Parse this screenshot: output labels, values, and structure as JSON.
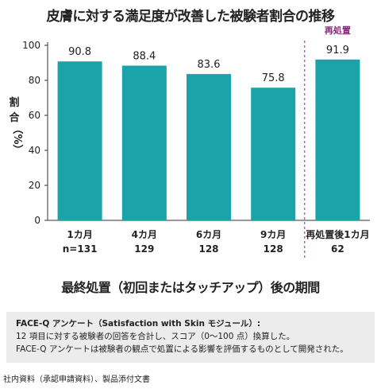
{
  "title": "皮膚に対する満足度が改善した被験者割合の推移",
  "chart_data": {
    "type": "bar",
    "title": "皮膚に対する満足度が改善した被験者割合の推移",
    "ylabel": [
      "割",
      "合",
      "（%）"
    ],
    "ylim": [
      0,
      100
    ],
    "yticks": [
      0,
      20,
      40,
      60,
      80,
      100
    ],
    "categories": [
      {
        "label": "1カ月",
        "n": "n=131"
      },
      {
        "label": "4カ月",
        "n": "129"
      },
      {
        "label": "6カ月",
        "n": "128"
      },
      {
        "label": "9カ月",
        "n": "128"
      },
      {
        "label": "再処置後1カ月",
        "n": "62"
      }
    ],
    "values": [
      90.8,
      88.4,
      83.6,
      75.8,
      91.9
    ],
    "value_labels": [
      "90.8",
      "88.4",
      "83.6",
      "75.8",
      "91.9"
    ],
    "bar_color": "#1aa3a8",
    "divider_label": "再処置",
    "divider_color": "#8a2a7a",
    "xlabel": "最終処置（初回またはタッチアップ）後の期間",
    "grid": false
  },
  "note": {
    "heading": "FACE-Q アンケート（Satisfaction with Skin モジュール）:",
    "line1": "12 項目に対する被験者の回答を合計し、スコア（0～100 点）換算した。",
    "line2": "FACE-Q アンケートは被験者の観点で処置による影響を評価するものとして開発された。"
  },
  "footer": "社内資料（承認申請資料）、製品添付文書"
}
